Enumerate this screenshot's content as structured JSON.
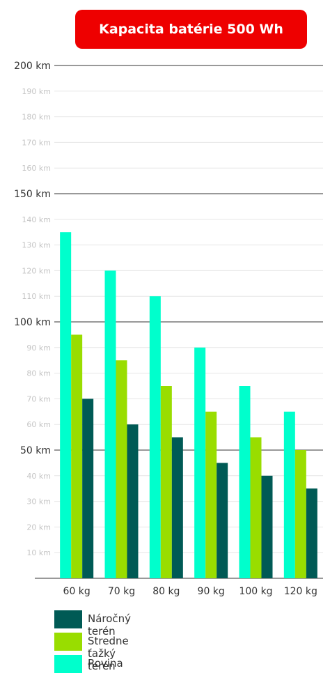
{
  "chart_data": {
    "type": "bar",
    "title": "Kapacita batérie 500 Wh",
    "categories": [
      "60 kg",
      "70 kg",
      "80 kg",
      "90 kg",
      "100 kg",
      "120 kg"
    ],
    "series": [
      {
        "name": "Rovina",
        "color": "#00ffcc",
        "values": [
          135,
          120,
          110,
          90,
          75,
          65
        ]
      },
      {
        "name": "Stredne ťažký terén",
        "color": "#99dd00",
        "values": [
          95,
          85,
          75,
          65,
          55,
          50
        ]
      },
      {
        "name": "Náročný terén",
        "color": "#005a55",
        "values": [
          70,
          60,
          55,
          45,
          40,
          35
        ]
      }
    ],
    "ylim": [
      0,
      200
    ],
    "y_ticks_major": [
      "200 km",
      "150 km",
      "100 km",
      "50 km"
    ],
    "y_ticks_minor": [
      "190 km",
      "180 km",
      "170 km",
      "160 km",
      "140 km",
      "130 km",
      "120 km",
      "110 km",
      "90 km",
      "80 km",
      "70 km",
      "60 km",
      "40 km",
      "30 km",
      "20 km",
      "10 km"
    ],
    "grid": true,
    "legend_position": "bottom-left"
  },
  "legend": [
    {
      "label": "Náročný terén",
      "color": "#005a55"
    },
    {
      "label": "Stredne ťažký terén",
      "color": "#99dd00"
    },
    {
      "label": "Rovina",
      "color": "#00ffcc"
    }
  ]
}
